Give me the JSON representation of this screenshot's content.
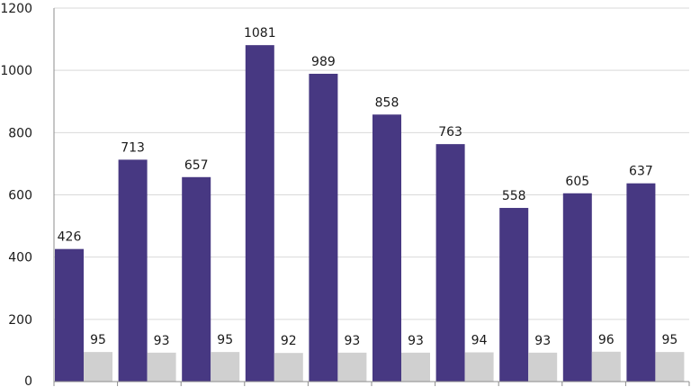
{
  "chart_data": {
    "type": "bar",
    "title": "",
    "xlabel": "",
    "ylabel": "",
    "ylim": [
      0,
      1200
    ],
    "yticks": [
      0,
      200,
      400,
      600,
      800,
      1000,
      1200
    ],
    "grid": true,
    "legend": "none",
    "categories": [
      "",
      "",
      "",
      "",
      "",
      "",
      "",
      "",
      "",
      ""
    ],
    "series": [
      {
        "values": [
          426,
          713,
          657,
          1081,
          989,
          858,
          763,
          558,
          605,
          637
        ],
        "color": "#473882"
      },
      {
        "values": [
          95,
          93,
          95,
          92,
          93,
          93,
          94,
          93,
          96,
          95
        ],
        "color": "#d0d0d0"
      }
    ]
  }
}
